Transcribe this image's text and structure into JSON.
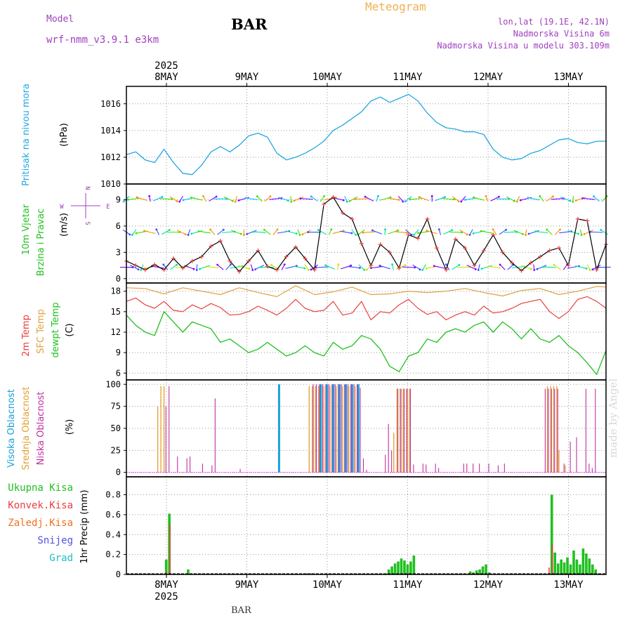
{
  "header": {
    "app_title": "Meteogram",
    "station": "BAR",
    "model_label": "Model",
    "model_name": "wrf-nmm_v3.9.1 e3km",
    "lonlat": "lon,lat (19.1E, 42.1N)",
    "elevation": "Nadmorska Visina 6m",
    "model_elevation": "Nadmorska Visina u modelu 303.109m",
    "footer_station": "BAR",
    "watermark": "made by Angel"
  },
  "colors": {
    "title": "#f0b050",
    "purple": "#a040c0",
    "pressure": "#22a8e0",
    "temp2m": "#e84040",
    "sfc": "#e0a040",
    "dew": "#20c020",
    "high_cloud": "#1aa0d8",
    "mid_cloud": "#e0a030",
    "low_cloud": "#c030a0",
    "total_precip": "#20c020",
    "conv_precip": "#e84040",
    "freezing": "#f07020",
    "snow": "#5050e0",
    "hail": "#20c0c0",
    "wind_speed": "#e84040",
    "wind_ctrl": "#000000"
  },
  "chart_data": [
    {
      "id": "pressure",
      "type": "line",
      "ylabel_left": "Pritisak na nivou mora",
      "unit": "(hPa)",
      "yticks": [
        "1010",
        "1012",
        "1014",
        "1016"
      ],
      "ylim": [
        1010,
        1017.3
      ],
      "x_days": [
        "8MAY",
        "9MAY",
        "10MAY",
        "11MAY",
        "12MAY",
        "13MAY"
      ],
      "top_year": "2025",
      "series": [
        {
          "name": "MSLP",
          "x": [
            0,
            3,
            6,
            9,
            12,
            15,
            18,
            21,
            24,
            27,
            30,
            33,
            36,
            39,
            42,
            45,
            48,
            51,
            54,
            57,
            60,
            63,
            66,
            69,
            72,
            75,
            78,
            81,
            84,
            87,
            90,
            93,
            96,
            99,
            102,
            105,
            108,
            111,
            114,
            117,
            120,
            123,
            126,
            129,
            132,
            135,
            138,
            141,
            144,
            147,
            150,
            153
          ],
          "y": [
            1012.2,
            1012.4,
            1011.8,
            1011.6,
            1012.6,
            1011.6,
            1010.8,
            1010.7,
            1011.4,
            1012.4,
            1012.8,
            1012.4,
            1012.9,
            1013.6,
            1013.8,
            1013.5,
            1012.3,
            1011.8,
            1012.0,
            1012.3,
            1012.7,
            1013.2,
            1014.0,
            1014.4,
            1014.9,
            1015.4,
            1016.2,
            1016.5,
            1016.1,
            1016.4,
            1016.7,
            1016.2,
            1015.3,
            1014.6,
            1014.2,
            1014.1,
            1013.9,
            1013.9,
            1013.7,
            1012.6,
            1012.0,
            1011.8,
            1011.9,
            1012.3,
            1012.5,
            1012.9,
            1013.3,
            1013.4,
            1013.1,
            1013.0,
            1013.2,
            1013.2
          ]
        }
      ]
    },
    {
      "id": "wind",
      "type": "line",
      "ylabel_left_1": "10m Vjetar",
      "ylabel_left_2": "Brzina i Pravac",
      "unit": "(m/s)",
      "yticks": [
        "0",
        "3",
        "6",
        "9"
      ],
      "ylim": [
        -0.5,
        10.8
      ],
      "compass": {
        "n": "N",
        "s": "S",
        "w": "W",
        "e": "E"
      },
      "arrow_rows": [
        1.3,
        5.3,
        9.1
      ],
      "series": [
        {
          "name": "speed",
          "x": [
            0,
            3,
            6,
            9,
            12,
            15,
            18,
            21,
            24,
            27,
            30,
            33,
            36,
            39,
            42,
            45,
            48,
            51,
            54,
            57,
            60,
            63,
            66,
            69,
            72,
            75,
            78,
            81,
            84,
            87,
            90,
            93,
            96,
            99,
            102,
            105,
            108,
            111,
            114,
            117,
            120,
            123,
            126,
            129,
            132,
            135,
            138,
            141,
            144,
            147,
            150,
            153
          ],
          "y": [
            2.0,
            1.5,
            1.0,
            1.6,
            1.0,
            2.3,
            1.2,
            2.0,
            2.5,
            3.7,
            4.3,
            2.0,
            0.8,
            2.0,
            3.2,
            1.4,
            1.0,
            2.5,
            3.6,
            2.3,
            1.0,
            8.5,
            9.3,
            7.5,
            6.8,
            4.0,
            1.5,
            3.9,
            3.0,
            1.2,
            5.0,
            4.6,
            6.8,
            3.5,
            1.0,
            4.5,
            3.5,
            1.5,
            3.2,
            5.0,
            3.0,
            1.8,
            0.9,
            1.8,
            2.5,
            3.2,
            3.5,
            1.5,
            6.8,
            6.6,
            1.0,
            3.9
          ]
        }
      ]
    },
    {
      "id": "temp",
      "type": "line",
      "ylabel_left_1": "2m Temp",
      "ylabel_left_2": "SFC Temp",
      "ylabel_left_3": "dewpt Temp",
      "unit": "(C)",
      "yticks": [
        "6",
        "9",
        "12",
        "15",
        "18"
      ],
      "ylim": [
        5,
        19.2
      ],
      "series": [
        {
          "name": "2m Temp",
          "x": [
            0,
            3,
            6,
            9,
            12,
            15,
            18,
            21,
            24,
            27,
            30,
            33,
            36,
            39,
            42,
            45,
            48,
            51,
            54,
            57,
            60,
            63,
            66,
            69,
            72,
            75,
            78,
            81,
            84,
            87,
            90,
            93,
            96,
            99,
            102,
            105,
            108,
            111,
            114,
            117,
            120,
            123,
            126,
            129,
            132,
            135,
            138,
            141,
            144,
            147,
            150,
            153
          ],
          "y": [
            16.5,
            17.0,
            16.0,
            15.5,
            16.5,
            15.2,
            15.0,
            16.0,
            15.4,
            16.2,
            15.6,
            14.5,
            14.6,
            15.0,
            15.8,
            15.2,
            14.5,
            15.5,
            16.8,
            15.5,
            15.0,
            15.2,
            16.5,
            14.5,
            14.8,
            16.5,
            13.8,
            15.0,
            14.8,
            16.0,
            16.8,
            15.5,
            14.6,
            15.0,
            13.8,
            14.5,
            15.0,
            14.5,
            15.8,
            14.8,
            15.0,
            15.5,
            16.2,
            16.5,
            16.8,
            15.0,
            14.0,
            15.0,
            16.8,
            17.2,
            16.5,
            15.5
          ]
        },
        {
          "name": "SFC Temp",
          "x": [
            0,
            6,
            12,
            18,
            24,
            30,
            36,
            42,
            48,
            54,
            60,
            66,
            72,
            78,
            84,
            90,
            96,
            102,
            108,
            114,
            120,
            126,
            132,
            138,
            144,
            150,
            153
          ],
          "y": [
            18.5,
            18.4,
            17.6,
            18.5,
            18.0,
            17.5,
            18.5,
            17.8,
            17.2,
            18.8,
            17.5,
            17.9,
            18.6,
            17.5,
            17.6,
            18.0,
            17.8,
            18.0,
            18.4,
            17.8,
            17.3,
            18.1,
            18.4,
            17.5,
            18.0,
            18.7,
            18.6
          ]
        },
        {
          "name": "dewpt Temp",
          "x": [
            0,
            3,
            6,
            9,
            12,
            15,
            18,
            21,
            24,
            27,
            30,
            33,
            36,
            39,
            42,
            45,
            48,
            51,
            54,
            57,
            60,
            63,
            66,
            69,
            72,
            75,
            78,
            81,
            84,
            87,
            90,
            93,
            96,
            99,
            102,
            105,
            108,
            111,
            114,
            117,
            120,
            123,
            126,
            129,
            132,
            135,
            138,
            141,
            144,
            147,
            150,
            153
          ],
          "y": [
            14.5,
            13.0,
            12.0,
            11.5,
            15.0,
            13.5,
            12.0,
            13.5,
            13.0,
            12.5,
            10.5,
            11.0,
            10.0,
            9.0,
            9.5,
            10.5,
            9.5,
            8.5,
            9.0,
            10.0,
            9.0,
            8.5,
            10.5,
            9.5,
            10.0,
            11.5,
            11.0,
            9.5,
            7.0,
            6.2,
            8.5,
            9.0,
            11.0,
            10.5,
            12.0,
            12.5,
            12.0,
            13.0,
            13.5,
            12.0,
            13.5,
            12.5,
            11.0,
            12.5,
            11.0,
            10.5,
            11.5,
            10.0,
            9.0,
            7.5,
            5.8,
            9.3
          ]
        }
      ]
    },
    {
      "id": "clouds",
      "type": "bar",
      "ylabel_left_1": "Visoka Oblacnost",
      "ylabel_left_2": "Srednja Oblacnost",
      "ylabel_left_3": "Niska Oblacnost",
      "unit": "(%)",
      "yticks": [
        "0",
        "25",
        "50",
        "75",
        "100"
      ],
      "ylim": [
        -5,
        105
      ],
      "series": [
        {
          "name": "Visoka",
          "x": [
            48.7,
            62,
            64,
            66,
            68,
            70,
            72,
            74
          ],
          "values": [
            100,
            100,
            100,
            100,
            100,
            100,
            100,
            100
          ]
        },
        {
          "name": "Srednja",
          "x": [
            10,
            11,
            12,
            58.3,
            59.3,
            60.3,
            61.3,
            63,
            65,
            67,
            69,
            71,
            73,
            85.3,
            86.3,
            87.3,
            88.3,
            89.3,
            90.3,
            134.3,
            135.3,
            136.3,
            137.3,
            138,
            140,
            142
          ],
          "values": [
            75,
            98,
            98,
            98,
            98,
            98,
            98,
            98,
            98,
            98,
            98,
            98,
            98,
            45,
            95,
            95,
            95,
            95,
            95,
            98,
            98,
            98,
            98,
            25,
            8,
            1
          ]
        },
        {
          "name": "Niska",
          "x": [
            12.6,
            13.6,
            16.3,
            19.3,
            20.3,
            24.3,
            27.3,
            28.3,
            36.3,
            59.6,
            60.6,
            61.6,
            62.6,
            63.6,
            64.6,
            65.6,
            66.6,
            67.6,
            68.6,
            69.6,
            70.6,
            71.6,
            72.6,
            73.6,
            74.6,
            75.6,
            76.6,
            82.6,
            83.6,
            84.6,
            86.6,
            87.6,
            88.6,
            89.6,
            90.6,
            91.6,
            94.6,
            95.6,
            98.6,
            99.6,
            107.6,
            108.6,
            110.6,
            112.6,
            115.6,
            118.6,
            120.6,
            133.6,
            134.6,
            135.6,
            136.6,
            137.6,
            139.6,
            141.6,
            143.6,
            146.6,
            147.6,
            148.6,
            149.6
          ],
          "values": [
            75,
            98,
            18,
            16,
            18,
            10,
            8,
            84,
            4,
            100,
            100,
            100,
            100,
            100,
            100,
            100,
            100,
            100,
            100,
            100,
            100,
            100,
            100,
            100,
            96,
            16,
            3,
            20,
            55,
            25,
            95,
            95,
            95,
            95,
            95,
            9,
            10,
            9,
            10,
            5,
            10,
            10,
            10,
            10,
            10,
            8,
            10,
            95,
            95,
            95,
            95,
            95,
            10,
            35,
            40,
            95,
            10,
            5,
            95
          ]
        }
      ]
    },
    {
      "id": "precip",
      "type": "bar",
      "unit": "1hr Precip (mm)",
      "yticks": [
        "0",
        "0.2",
        "0.4",
        "0.6",
        "0.8"
      ],
      "ylim": [
        0,
        0.98
      ],
      "legend": [
        "Ukupna Kisa",
        "Konvek.Kisa",
        "Zaledj.Kisa",
        "Snijeg",
        "Grad"
      ],
      "bottom_year": "2025",
      "series": [
        {
          "name": "Ukupna",
          "x": [
            12.7,
            13.7,
            19.7,
            56.7,
            57.7,
            58.7,
            82.7,
            83.7,
            84.7,
            85.7,
            86.7,
            87.7,
            88.7,
            89.7,
            90.7,
            91.7,
            109.7,
            110.7,
            111.7,
            112.7,
            113.7,
            114.7,
            115.7,
            135.7,
            136.7,
            137.7,
            138.7,
            139.7,
            140.7,
            141.7,
            142.7,
            143.7,
            144.7,
            145.7,
            146.7,
            147.7,
            148.7,
            149.7,
            150.7
          ],
          "values": [
            0.15,
            0.61,
            0.05,
            0.01,
            0.01,
            0.01,
            0.01,
            0.05,
            0.08,
            0.11,
            0.13,
            0.16,
            0.14,
            0.1,
            0.13,
            0.19,
            0.03,
            0.02,
            0.04,
            0.05,
            0.08,
            0.1,
            0.02,
            0.8,
            0.22,
            0.11,
            0.15,
            0.12,
            0.17,
            0.1,
            0.24,
            0.15,
            0.1,
            0.26,
            0.21,
            0.16,
            0.1,
            0.05,
            0.01
          ]
        },
        {
          "name": "Konvek",
          "x": [
            12.9,
            13.9,
            56.9,
            109.9,
            110.9,
            111.9,
            134.9,
            135.9
          ],
          "values": [
            0.03,
            0.5,
            0.01,
            0.01,
            0.01,
            0.02,
            0.07,
            0.3
          ]
        }
      ]
    }
  ]
}
